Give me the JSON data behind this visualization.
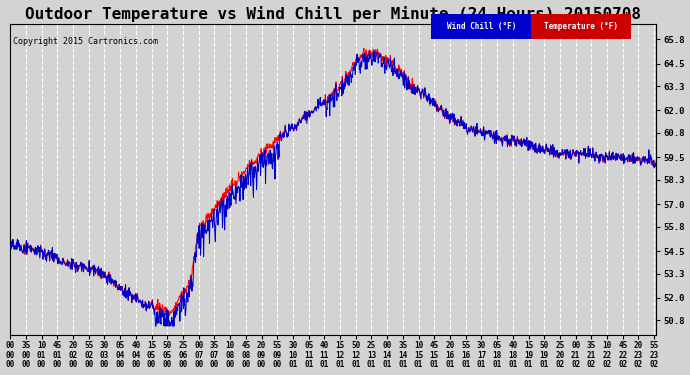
{
  "title": "Outdoor Temperature vs Wind Chill per Minute (24 Hours) 20150708",
  "copyright": "Copyright 2015 Cartronics.com",
  "yticks": [
    50.8,
    52.0,
    53.3,
    54.5,
    55.8,
    57.0,
    58.3,
    59.5,
    60.8,
    62.0,
    63.3,
    64.5,
    65.8
  ],
  "ylim": [
    50.0,
    66.6
  ],
  "legend_labels": [
    "Wind Chill (°F)",
    "Temperature (°F)"
  ],
  "legend_bg_colors": [
    "#0000cc",
    "#cc0000"
  ],
  "bg_color": "#d3d3d3",
  "grid_color": "#ffffff",
  "temp_color": "#ff0000",
  "wind_color": "#0000cc",
  "title_fontsize": 11.5,
  "tick_fontsize": 6.5,
  "xtick_step_min": 35,
  "n_minutes": 1440
}
